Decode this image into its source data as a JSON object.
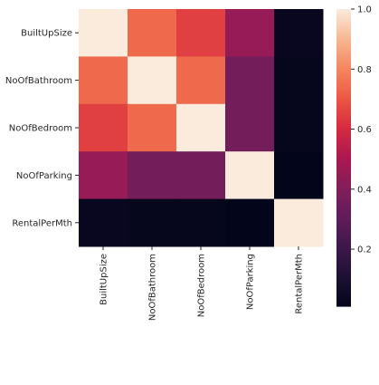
{
  "chart_data": {
    "type": "heatmap",
    "title": "",
    "xlabel": "",
    "ylabel": "",
    "row_labels": [
      "BuiltUpSize",
      "NoOfBathroom",
      "NoOfBedroom",
      "NoOfParking",
      "RentalPerMth"
    ],
    "col_labels": [
      "BuiltUpSize",
      "NoOfBathroom",
      "NoOfBedroom",
      "NoOfParking",
      "RentalPerMth"
    ],
    "values": [
      [
        1.0,
        0.74,
        0.65,
        0.45,
        0.03
      ],
      [
        0.74,
        1.0,
        0.74,
        0.36,
        0.02
      ],
      [
        0.65,
        0.74,
        1.0,
        0.36,
        0.02
      ],
      [
        0.45,
        0.36,
        0.36,
        1.0,
        0.01
      ],
      [
        0.03,
        0.02,
        0.02,
        0.01,
        1.0
      ]
    ],
    "colorbar": {
      "colormap": "rocket",
      "vmin": 0.01,
      "vmax": 1.0,
      "ticks": [
        0.2,
        0.4,
        0.6,
        0.8,
        1.0
      ],
      "tick_labels": [
        "0.2",
        "0.4",
        "0.6",
        "0.8",
        "1.0"
      ]
    },
    "grid": false
  }
}
